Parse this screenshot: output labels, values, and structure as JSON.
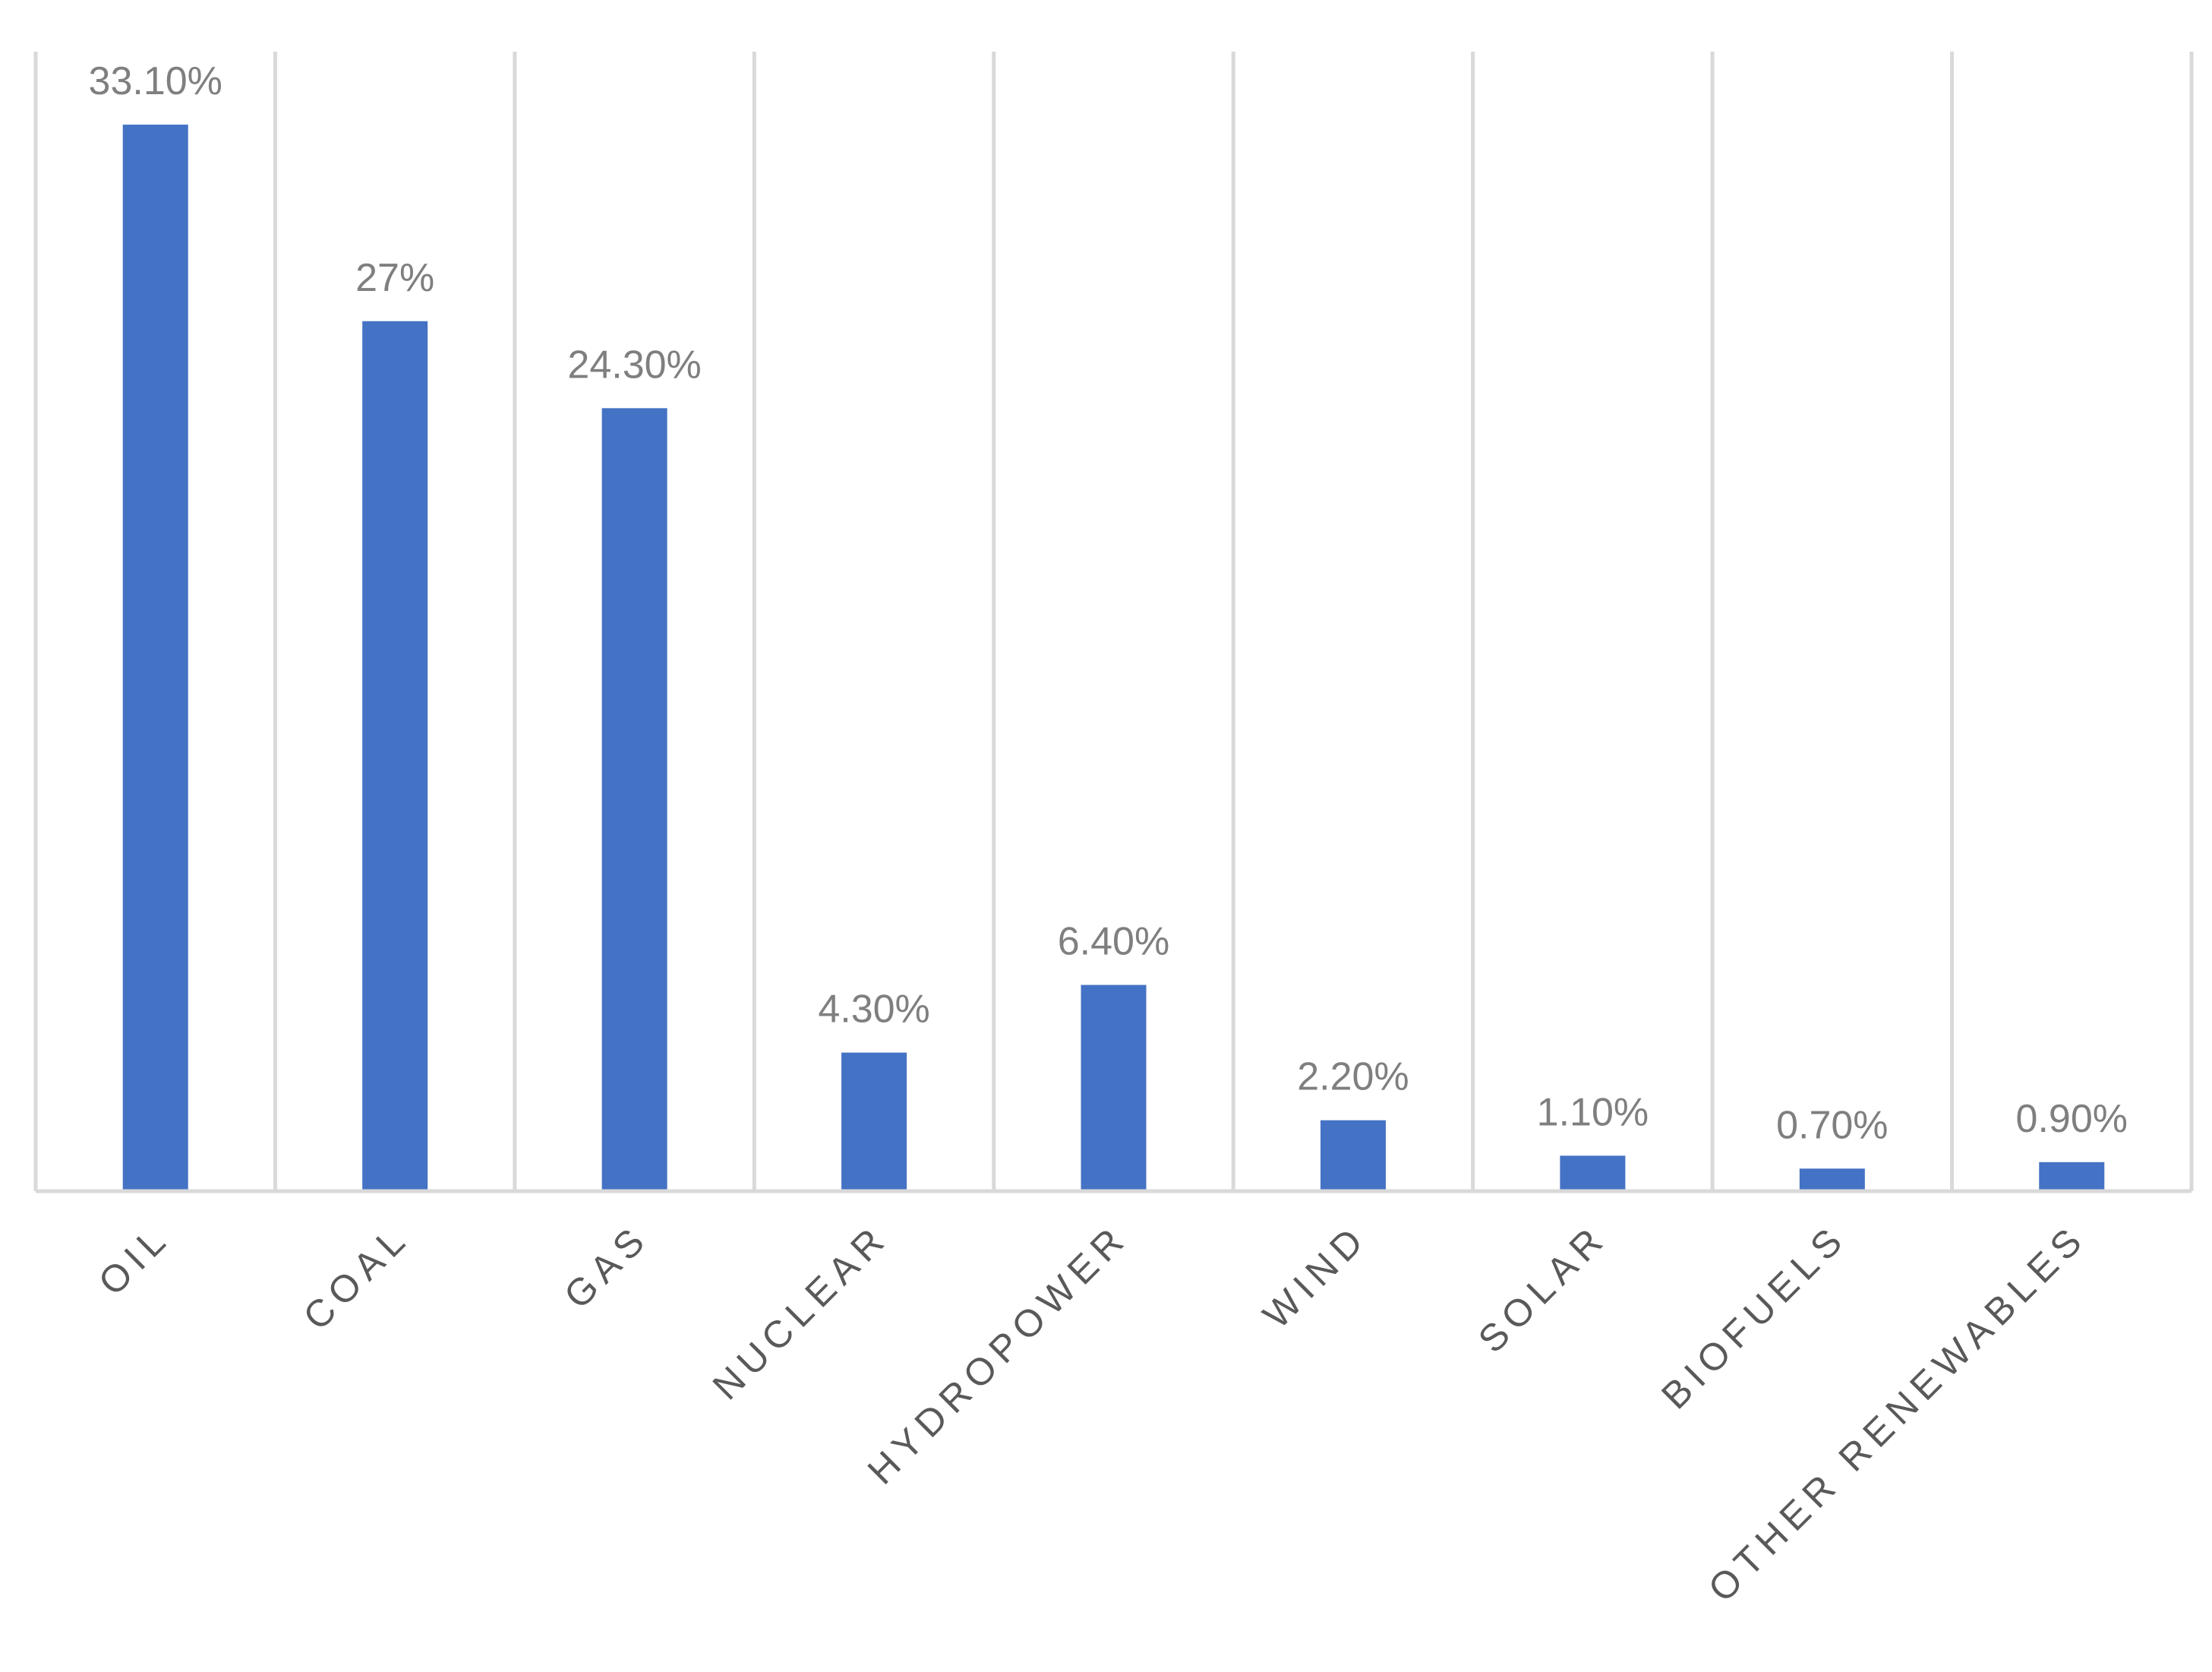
{
  "chart_data": {
    "type": "bar",
    "title": "",
    "xlabel": "",
    "ylabel": "",
    "categories": [
      "OIL",
      "COAL",
      "GAS",
      "NUCLEAR",
      "HYDROPOWER",
      "WIND",
      "SOLAR",
      "BIOFUELS",
      "OTHER RENEWABLES"
    ],
    "values": [
      33.1,
      27,
      24.3,
      4.3,
      6.4,
      2.2,
      1.1,
      0.7,
      0.9
    ],
    "data_labels": [
      "33.10%",
      "27%",
      "24.30%",
      "4.30%",
      "6.40%",
      "2.20%",
      "1.10%",
      "0.70%",
      "0.90%"
    ],
    "ylim": [
      0,
      35.2
    ],
    "unit": "%",
    "grid": "vertical category separators",
    "legend": "none",
    "bar_color": "#4472c4",
    "grid_color": "#d9d9d9",
    "data_label_color": "#7f7f7f",
    "tick_label_color": "#595959"
  }
}
